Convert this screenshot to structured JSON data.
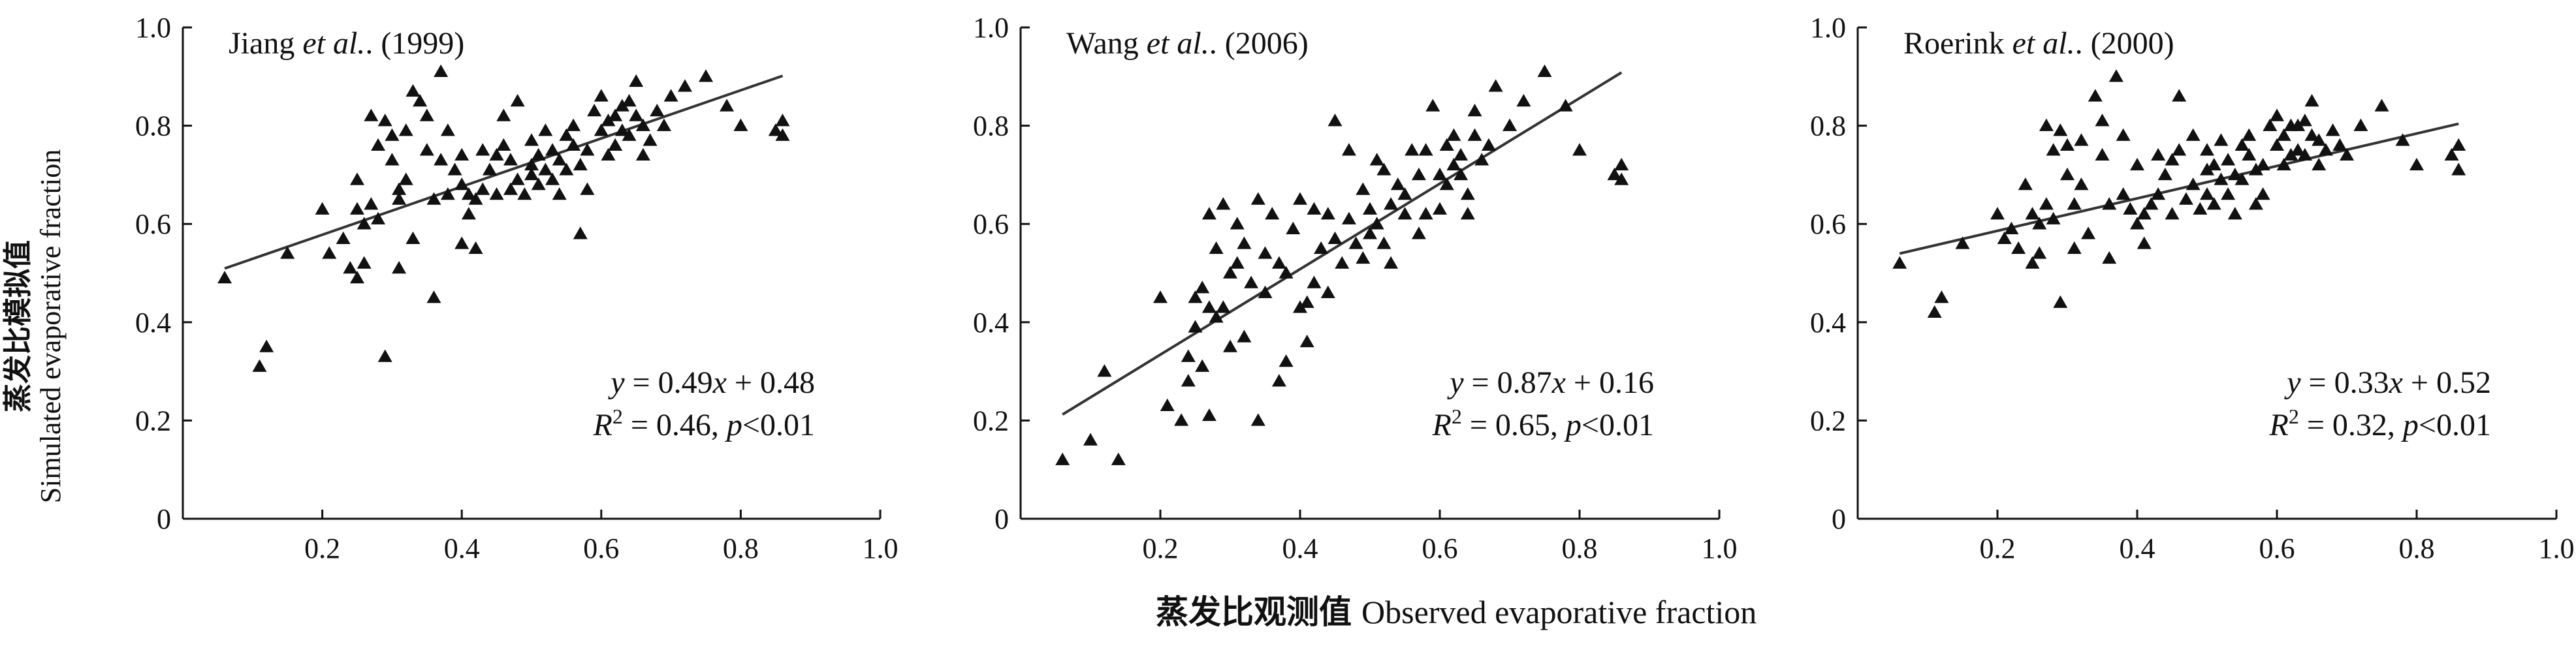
{
  "figure": {
    "ylabel_cn": "蒸发比模拟值",
    "ylabel_en": "Simulated evaporative fraction",
    "xlabel_cn": "蒸发比观测值",
    "xlabel_en": "Observed evaporative fraction"
  },
  "chart_data": [
    {
      "type": "scatter",
      "title_author": "Jiang",
      "title_etal": "et al.",
      "title_year": "(1999)",
      "xlim": [
        0,
        1.0
      ],
      "ylim": [
        0,
        1.0
      ],
      "xticks": [
        "0.2",
        "0.4",
        "0.6",
        "0.8",
        "1.0"
      ],
      "yticks": [
        "0",
        "0.2",
        "0.4",
        "0.6",
        "0.8",
        "1.0"
      ],
      "fit": {
        "slope": 0.49,
        "intercept": 0.48,
        "x_range": [
          0.06,
          0.86
        ]
      },
      "equation": {
        "slope": "0.49",
        "intercept": "0.48",
        "r2": "0.46",
        "p": "p<0.01"
      },
      "points": [
        [
          0.06,
          0.49
        ],
        [
          0.11,
          0.31
        ],
        [
          0.12,
          0.35
        ],
        [
          0.15,
          0.54
        ],
        [
          0.2,
          0.63
        ],
        [
          0.21,
          0.54
        ],
        [
          0.23,
          0.57
        ],
        [
          0.24,
          0.51
        ],
        [
          0.25,
          0.69
        ],
        [
          0.25,
          0.63
        ],
        [
          0.25,
          0.49
        ],
        [
          0.26,
          0.52
        ],
        [
          0.26,
          0.6
        ],
        [
          0.27,
          0.82
        ],
        [
          0.27,
          0.64
        ],
        [
          0.28,
          0.76
        ],
        [
          0.28,
          0.61
        ],
        [
          0.29,
          0.33
        ],
        [
          0.29,
          0.81
        ],
        [
          0.3,
          0.78
        ],
        [
          0.3,
          0.73
        ],
        [
          0.31,
          0.51
        ],
        [
          0.31,
          0.65
        ],
        [
          0.31,
          0.67
        ],
        [
          0.32,
          0.79
        ],
        [
          0.32,
          0.69
        ],
        [
          0.33,
          0.57
        ],
        [
          0.33,
          0.87
        ],
        [
          0.34,
          0.85
        ],
        [
          0.35,
          0.75
        ],
        [
          0.35,
          0.82
        ],
        [
          0.36,
          0.45
        ],
        [
          0.36,
          0.65
        ],
        [
          0.37,
          0.91
        ],
        [
          0.37,
          0.73
        ],
        [
          0.38,
          0.66
        ],
        [
          0.38,
          0.79
        ],
        [
          0.39,
          0.71
        ],
        [
          0.4,
          0.74
        ],
        [
          0.4,
          0.68
        ],
        [
          0.4,
          0.56
        ],
        [
          0.41,
          0.66
        ],
        [
          0.41,
          0.62
        ],
        [
          0.42,
          0.65
        ],
        [
          0.42,
          0.55
        ],
        [
          0.43,
          0.75
        ],
        [
          0.43,
          0.67
        ],
        [
          0.44,
          0.71
        ],
        [
          0.45,
          0.74
        ],
        [
          0.45,
          0.66
        ],
        [
          0.46,
          0.82
        ],
        [
          0.46,
          0.76
        ],
        [
          0.47,
          0.67
        ],
        [
          0.47,
          0.73
        ],
        [
          0.48,
          0.69
        ],
        [
          0.48,
          0.85
        ],
        [
          0.49,
          0.66
        ],
        [
          0.5,
          0.72
        ],
        [
          0.5,
          0.77
        ],
        [
          0.5,
          0.7
        ],
        [
          0.51,
          0.68
        ],
        [
          0.51,
          0.74
        ],
        [
          0.52,
          0.71
        ],
        [
          0.52,
          0.79
        ],
        [
          0.53,
          0.69
        ],
        [
          0.53,
          0.75
        ],
        [
          0.54,
          0.73
        ],
        [
          0.54,
          0.66
        ],
        [
          0.55,
          0.78
        ],
        [
          0.55,
          0.71
        ],
        [
          0.56,
          0.8
        ],
        [
          0.56,
          0.76
        ],
        [
          0.57,
          0.58
        ],
        [
          0.57,
          0.72
        ],
        [
          0.58,
          0.75
        ],
        [
          0.58,
          0.67
        ],
        [
          0.59,
          0.83
        ],
        [
          0.6,
          0.79
        ],
        [
          0.6,
          0.86
        ],
        [
          0.61,
          0.81
        ],
        [
          0.61,
          0.74
        ],
        [
          0.62,
          0.76
        ],
        [
          0.62,
          0.82
        ],
        [
          0.63,
          0.79
        ],
        [
          0.63,
          0.84
        ],
        [
          0.64,
          0.85
        ],
        [
          0.64,
          0.78
        ],
        [
          0.65,
          0.89
        ],
        [
          0.65,
          0.82
        ],
        [
          0.66,
          0.74
        ],
        [
          0.66,
          0.8
        ],
        [
          0.67,
          0.77
        ],
        [
          0.68,
          0.83
        ],
        [
          0.69,
          0.8
        ],
        [
          0.7,
          0.86
        ],
        [
          0.72,
          0.88
        ],
        [
          0.75,
          0.9
        ],
        [
          0.78,
          0.84
        ],
        [
          0.8,
          0.8
        ],
        [
          0.85,
          0.79
        ],
        [
          0.86,
          0.78
        ],
        [
          0.86,
          0.81
        ]
      ]
    },
    {
      "type": "scatter",
      "title_author": "Wang",
      "title_etal": "et al.",
      "title_year": "(2006)",
      "xlim": [
        0,
        1.0
      ],
      "ylim": [
        0,
        1.0
      ],
      "xticks": [
        "0.2",
        "0.4",
        "0.6",
        "0.8",
        "1.0"
      ],
      "yticks": [
        "0",
        "0.2",
        "0.4",
        "0.6",
        "0.8",
        "1.0"
      ],
      "fit": {
        "slope": 0.87,
        "intercept": 0.16,
        "x_range": [
          0.06,
          0.86
        ]
      },
      "equation": {
        "slope": "0.87",
        "intercept": "0.16",
        "r2": "0.65",
        "p": "p<0.01"
      },
      "points": [
        [
          0.06,
          0.12
        ],
        [
          0.1,
          0.16
        ],
        [
          0.12,
          0.3
        ],
        [
          0.14,
          0.12
        ],
        [
          0.2,
          0.45
        ],
        [
          0.21,
          0.23
        ],
        [
          0.23,
          0.2
        ],
        [
          0.24,
          0.33
        ],
        [
          0.24,
          0.28
        ],
        [
          0.25,
          0.45
        ],
        [
          0.25,
          0.39
        ],
        [
          0.26,
          0.47
        ],
        [
          0.26,
          0.31
        ],
        [
          0.27,
          0.62
        ],
        [
          0.27,
          0.43
        ],
        [
          0.27,
          0.21
        ],
        [
          0.28,
          0.41
        ],
        [
          0.28,
          0.55
        ],
        [
          0.29,
          0.64
        ],
        [
          0.29,
          0.43
        ],
        [
          0.3,
          0.5
        ],
        [
          0.3,
          0.35
        ],
        [
          0.31,
          0.6
        ],
        [
          0.31,
          0.52
        ],
        [
          0.32,
          0.56
        ],
        [
          0.32,
          0.37
        ],
        [
          0.33,
          0.48
        ],
        [
          0.34,
          0.2
        ],
        [
          0.34,
          0.65
        ],
        [
          0.35,
          0.46
        ],
        [
          0.35,
          0.54
        ],
        [
          0.36,
          0.62
        ],
        [
          0.37,
          0.28
        ],
        [
          0.37,
          0.52
        ],
        [
          0.38,
          0.5
        ],
        [
          0.38,
          0.32
        ],
        [
          0.39,
          0.59
        ],
        [
          0.4,
          0.65
        ],
        [
          0.4,
          0.43
        ],
        [
          0.41,
          0.36
        ],
        [
          0.41,
          0.44
        ],
        [
          0.42,
          0.63
        ],
        [
          0.42,
          0.48
        ],
        [
          0.43,
          0.55
        ],
        [
          0.44,
          0.62
        ],
        [
          0.44,
          0.46
        ],
        [
          0.45,
          0.81
        ],
        [
          0.45,
          0.57
        ],
        [
          0.46,
          0.52
        ],
        [
          0.47,
          0.75
        ],
        [
          0.47,
          0.61
        ],
        [
          0.48,
          0.56
        ],
        [
          0.49,
          0.67
        ],
        [
          0.49,
          0.53
        ],
        [
          0.5,
          0.58
        ],
        [
          0.5,
          0.63
        ],
        [
          0.51,
          0.73
        ],
        [
          0.51,
          0.6
        ],
        [
          0.52,
          0.56
        ],
        [
          0.52,
          0.71
        ],
        [
          0.53,
          0.64
        ],
        [
          0.53,
          0.52
        ],
        [
          0.54,
          0.68
        ],
        [
          0.55,
          0.62
        ],
        [
          0.55,
          0.66
        ],
        [
          0.56,
          0.75
        ],
        [
          0.57,
          0.58
        ],
        [
          0.57,
          0.7
        ],
        [
          0.58,
          0.75
        ],
        [
          0.58,
          0.62
        ],
        [
          0.59,
          0.84
        ],
        [
          0.6,
          0.7
        ],
        [
          0.6,
          0.63
        ],
        [
          0.61,
          0.76
        ],
        [
          0.61,
          0.68
        ],
        [
          0.62,
          0.72
        ],
        [
          0.62,
          0.78
        ],
        [
          0.63,
          0.7
        ],
        [
          0.63,
          0.74
        ],
        [
          0.64,
          0.62
        ],
        [
          0.64,
          0.66
        ],
        [
          0.65,
          0.83
        ],
        [
          0.65,
          0.78
        ],
        [
          0.66,
          0.73
        ],
        [
          0.67,
          0.76
        ],
        [
          0.68,
          0.88
        ],
        [
          0.7,
          0.8
        ],
        [
          0.72,
          0.85
        ],
        [
          0.75,
          0.91
        ],
        [
          0.78,
          0.84
        ],
        [
          0.8,
          0.75
        ],
        [
          0.85,
          0.7
        ],
        [
          0.86,
          0.72
        ],
        [
          0.86,
          0.69
        ]
      ]
    },
    {
      "type": "scatter",
      "title_author": "Roerink",
      "title_etal": "et al.",
      "title_year": "(2000)",
      "xlim": [
        0,
        1.0
      ],
      "ylim": [
        0,
        1.0
      ],
      "xticks": [
        "0.2",
        "0.4",
        "0.6",
        "0.8",
        "1.0"
      ],
      "yticks": [
        "0",
        "0.2",
        "0.4",
        "0.6",
        "0.8",
        "1.0"
      ],
      "fit": {
        "slope": 0.33,
        "intercept": 0.52,
        "x_range": [
          0.06,
          0.86
        ]
      },
      "equation": {
        "slope": "0.33",
        "intercept": "0.52",
        "r2": "0.32",
        "p": "p<0.01"
      },
      "points": [
        [
          0.06,
          0.52
        ],
        [
          0.11,
          0.42
        ],
        [
          0.12,
          0.45
        ],
        [
          0.15,
          0.56
        ],
        [
          0.2,
          0.62
        ],
        [
          0.21,
          0.57
        ],
        [
          0.22,
          0.59
        ],
        [
          0.23,
          0.55
        ],
        [
          0.24,
          0.68
        ],
        [
          0.25,
          0.62
        ],
        [
          0.25,
          0.52
        ],
        [
          0.26,
          0.54
        ],
        [
          0.26,
          0.6
        ],
        [
          0.27,
          0.8
        ],
        [
          0.27,
          0.64
        ],
        [
          0.28,
          0.75
        ],
        [
          0.28,
          0.61
        ],
        [
          0.29,
          0.44
        ],
        [
          0.29,
          0.79
        ],
        [
          0.3,
          0.76
        ],
        [
          0.3,
          0.7
        ],
        [
          0.31,
          0.55
        ],
        [
          0.31,
          0.64
        ],
        [
          0.32,
          0.77
        ],
        [
          0.32,
          0.68
        ],
        [
          0.33,
          0.58
        ],
        [
          0.34,
          0.86
        ],
        [
          0.35,
          0.74
        ],
        [
          0.35,
          0.81
        ],
        [
          0.36,
          0.53
        ],
        [
          0.36,
          0.64
        ],
        [
          0.37,
          0.9
        ],
        [
          0.38,
          0.66
        ],
        [
          0.38,
          0.78
        ],
        [
          0.39,
          0.63
        ],
        [
          0.4,
          0.72
        ],
        [
          0.4,
          0.6
        ],
        [
          0.41,
          0.56
        ],
        [
          0.41,
          0.62
        ],
        [
          0.42,
          0.64
        ],
        [
          0.43,
          0.74
        ],
        [
          0.43,
          0.66
        ],
        [
          0.44,
          0.7
        ],
        [
          0.45,
          0.73
        ],
        [
          0.45,
          0.62
        ],
        [
          0.46,
          0.86
        ],
        [
          0.46,
          0.75
        ],
        [
          0.47,
          0.65
        ],
        [
          0.48,
          0.68
        ],
        [
          0.48,
          0.78
        ],
        [
          0.49,
          0.63
        ],
        [
          0.5,
          0.71
        ],
        [
          0.5,
          0.75
        ],
        [
          0.5,
          0.66
        ],
        [
          0.51,
          0.64
        ],
        [
          0.51,
          0.72
        ],
        [
          0.52,
          0.69
        ],
        [
          0.52,
          0.77
        ],
        [
          0.53,
          0.66
        ],
        [
          0.53,
          0.73
        ],
        [
          0.54,
          0.7
        ],
        [
          0.54,
          0.62
        ],
        [
          0.55,
          0.76
        ],
        [
          0.55,
          0.69
        ],
        [
          0.56,
          0.78
        ],
        [
          0.56,
          0.74
        ],
        [
          0.57,
          0.64
        ],
        [
          0.57,
          0.71
        ],
        [
          0.58,
          0.72
        ],
        [
          0.58,
          0.66
        ],
        [
          0.59,
          0.8
        ],
        [
          0.6,
          0.76
        ],
        [
          0.6,
          0.82
        ],
        [
          0.61,
          0.78
        ],
        [
          0.61,
          0.72
        ],
        [
          0.62,
          0.74
        ],
        [
          0.62,
          0.8
        ],
        [
          0.63,
          0.75
        ],
        [
          0.63,
          0.8
        ],
        [
          0.64,
          0.81
        ],
        [
          0.64,
          0.74
        ],
        [
          0.65,
          0.85
        ],
        [
          0.65,
          0.78
        ],
        [
          0.66,
          0.72
        ],
        [
          0.66,
          0.77
        ],
        [
          0.67,
          0.75
        ],
        [
          0.68,
          0.79
        ],
        [
          0.69,
          0.76
        ],
        [
          0.7,
          0.74
        ],
        [
          0.72,
          0.8
        ],
        [
          0.75,
          0.84
        ],
        [
          0.78,
          0.77
        ],
        [
          0.8,
          0.72
        ],
        [
          0.85,
          0.74
        ],
        [
          0.86,
          0.71
        ],
        [
          0.86,
          0.76
        ]
      ]
    }
  ]
}
